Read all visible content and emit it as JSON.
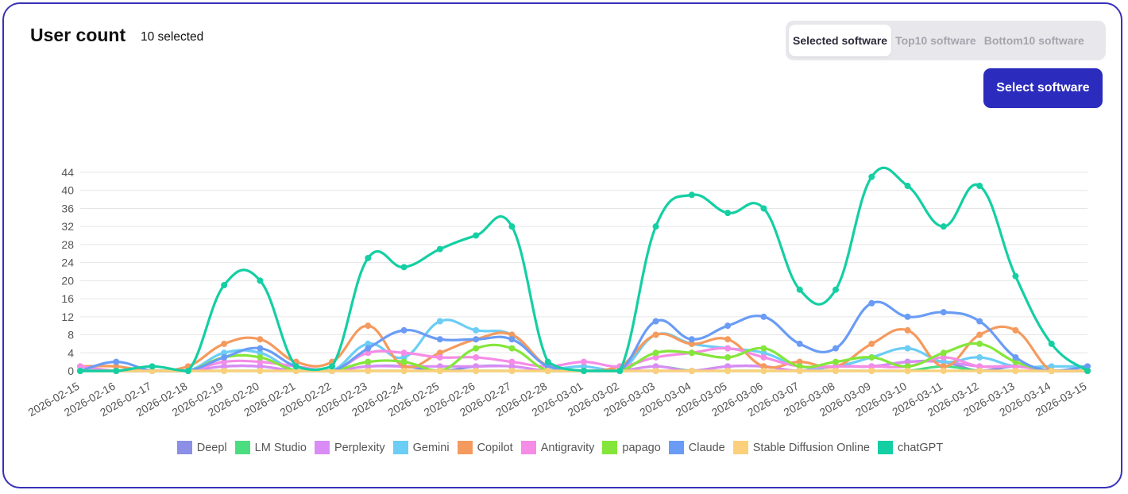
{
  "header": {
    "title": "User count",
    "subtitle": "10 selected"
  },
  "tabs": [
    {
      "label": "Selected software",
      "active": true
    },
    {
      "label": "Top10 software",
      "active": false
    },
    {
      "label": "Bottom10 software",
      "active": false
    }
  ],
  "select_button": {
    "label": "Select software"
  },
  "chart_data": {
    "type": "line",
    "title": "User count",
    "xlabel": "",
    "ylabel": "",
    "ylim": [
      0,
      44
    ],
    "yticks": [
      0,
      4,
      8,
      12,
      16,
      20,
      24,
      28,
      32,
      36,
      40,
      44
    ],
    "categories": [
      "2026-02-15",
      "2026-02-16",
      "2026-02-17",
      "2026-02-18",
      "2026-02-19",
      "2026-02-20",
      "2026-02-21",
      "2026-02-22",
      "2026-02-23",
      "2026-02-24",
      "2026-02-25",
      "2026-02-26",
      "2026-02-27",
      "2026-02-28",
      "2026-03-01",
      "2026-03-02",
      "2026-03-03",
      "2026-03-04",
      "2026-03-05",
      "2026-03-06",
      "2026-03-07",
      "2026-03-08",
      "2026-03-09",
      "2026-03-10",
      "2026-03-11",
      "2026-03-12",
      "2026-03-13",
      "2026-03-14",
      "2026-03-15"
    ],
    "series": [
      {
        "name": "Deepl",
        "color": "#8b8fe6",
        "values": [
          0,
          0,
          0,
          0,
          1,
          1,
          0,
          0,
          1,
          1,
          0,
          1,
          1,
          0,
          0,
          0,
          0,
          0,
          1,
          1,
          0,
          1,
          1,
          2,
          2,
          0,
          1,
          0,
          0
        ]
      },
      {
        "name": "LM Studio",
        "color": "#4ade80",
        "values": [
          0,
          0,
          0,
          0,
          0,
          0,
          0,
          0,
          0,
          0,
          0,
          0,
          0,
          0,
          0,
          0,
          1,
          0,
          0,
          0,
          0,
          0,
          0,
          0,
          1,
          0,
          0,
          0,
          0
        ]
      },
      {
        "name": "Perplexity",
        "color": "#d98cf5",
        "values": [
          0,
          0,
          0,
          0,
          1,
          1,
          0,
          0,
          1,
          1,
          1,
          1,
          1,
          0,
          0,
          0,
          1,
          0,
          1,
          1,
          0,
          1,
          1,
          2,
          2,
          1,
          1,
          0,
          0
        ]
      },
      {
        "name": "Gemini",
        "color": "#6ccdf5",
        "values": [
          0,
          0,
          0,
          0,
          4,
          4,
          0,
          0,
          6,
          3,
          11,
          9,
          8,
          1,
          1,
          0,
          8,
          6,
          5,
          4,
          1,
          1,
          3,
          5,
          2,
          3,
          1,
          1,
          1
        ]
      },
      {
        "name": "Copilot",
        "color": "#f59a5e",
        "values": [
          1,
          1,
          0,
          1,
          6,
          7,
          2,
          2,
          10,
          1,
          4,
          7,
          8,
          1,
          0,
          1,
          8,
          6,
          7,
          1,
          2,
          1,
          6,
          9,
          1,
          8,
          9,
          0,
          0
        ]
      },
      {
        "name": "Antigravity",
        "color": "#f58ce6",
        "values": [
          1,
          0,
          0,
          0,
          2,
          2,
          1,
          0,
          4,
          4,
          3,
          3,
          2,
          1,
          2,
          1,
          3,
          4,
          5,
          3,
          1,
          1,
          1,
          1,
          3,
          1,
          1,
          0,
          0
        ]
      },
      {
        "name": "papago",
        "color": "#84e63a",
        "values": [
          0,
          0,
          0,
          0,
          3,
          3,
          0,
          0,
          2,
          2,
          0,
          5,
          5,
          0,
          0,
          0,
          4,
          4,
          3,
          5,
          1,
          2,
          3,
          1,
          4,
          6,
          2,
          0,
          0
        ]
      },
      {
        "name": "Claude",
        "color": "#6a9cf5",
        "values": [
          0,
          2,
          0,
          0,
          3,
          5,
          1,
          0,
          5,
          9,
          7,
          7,
          7,
          1,
          0,
          0,
          11,
          7,
          10,
          12,
          6,
          5,
          15,
          12,
          13,
          11,
          3,
          0,
          1
        ]
      },
      {
        "name": "Stable Diffusion Online",
        "color": "#fcd07a",
        "values": [
          0,
          0,
          0,
          0,
          0,
          0,
          0,
          0,
          0,
          0,
          0,
          0,
          0,
          0,
          0,
          0,
          0,
          0,
          0,
          0,
          0,
          0,
          0,
          0,
          0,
          0,
          0,
          0,
          0
        ]
      },
      {
        "name": "chatGPT",
        "color": "#14cfa3",
        "values": [
          0,
          0,
          1,
          0,
          19,
          20,
          1,
          1,
          25,
          23,
          27,
          30,
          32,
          2,
          0,
          0,
          32,
          39,
          35,
          36,
          18,
          18,
          43,
          41,
          32,
          41,
          21,
          6,
          0
        ]
      }
    ]
  }
}
